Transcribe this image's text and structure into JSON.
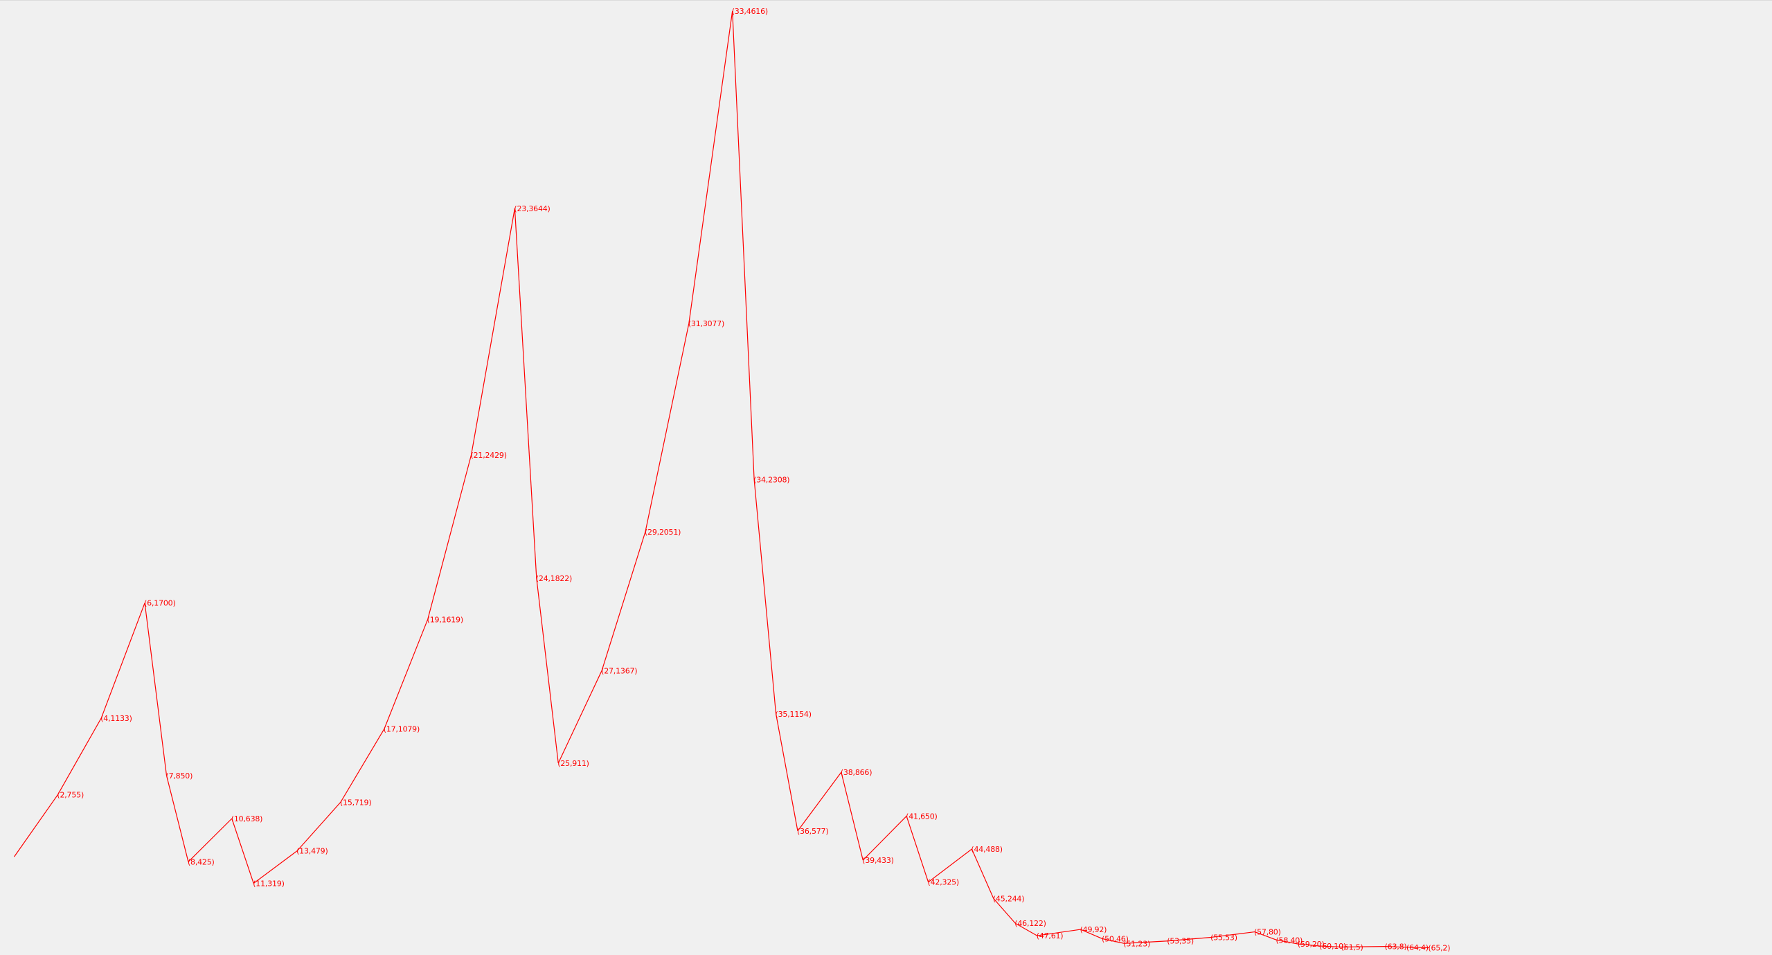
{
  "chart_data": {
    "type": "line",
    "title": "",
    "xlabel": "",
    "ylabel": "",
    "line_color": "#ff0000",
    "label_color": "#ff0000",
    "background": "#f0f0f0",
    "grid": false,
    "legend": "none",
    "xlim": [
      0,
      68
    ],
    "ylim": [
      0,
      4616
    ],
    "points": [
      {
        "x": 0,
        "y": 450,
        "label": ""
      },
      {
        "x": 2,
        "y": 755,
        "label": "(2,755)"
      },
      {
        "x": 4,
        "y": 1133,
        "label": "(4,1133)"
      },
      {
        "x": 6,
        "y": 1700,
        "label": "(6,1700)"
      },
      {
        "x": 7,
        "y": 850,
        "label": "(7,850)"
      },
      {
        "x": 8,
        "y": 425,
        "label": "(8,425)"
      },
      {
        "x": 10,
        "y": 638,
        "label": "(10,638)"
      },
      {
        "x": 11,
        "y": 319,
        "label": "(11,319)"
      },
      {
        "x": 13,
        "y": 479,
        "label": "(13,479)"
      },
      {
        "x": 15,
        "y": 719,
        "label": "(15,719)"
      },
      {
        "x": 17,
        "y": 1079,
        "label": "(17,1079)"
      },
      {
        "x": 19,
        "y": 1619,
        "label": "(19,1619)"
      },
      {
        "x": 21,
        "y": 2429,
        "label": "(21,2429)"
      },
      {
        "x": 23,
        "y": 3644,
        "label": "(23,3644)"
      },
      {
        "x": 24,
        "y": 1822,
        "label": "(24,1822)"
      },
      {
        "x": 25,
        "y": 911,
        "label": "(25,911)"
      },
      {
        "x": 27,
        "y": 1367,
        "label": "(27,1367)"
      },
      {
        "x": 29,
        "y": 2051,
        "label": "(29,2051)"
      },
      {
        "x": 31,
        "y": 3077,
        "label": "(31,3077)"
      },
      {
        "x": 33,
        "y": 4616,
        "label": "(33,4616)"
      },
      {
        "x": 34,
        "y": 2308,
        "label": "(34,2308)"
      },
      {
        "x": 35,
        "y": 1154,
        "label": "(35,1154)"
      },
      {
        "x": 36,
        "y": 577,
        "label": "(36,577)"
      },
      {
        "x": 38,
        "y": 866,
        "label": "(38,866)"
      },
      {
        "x": 39,
        "y": 433,
        "label": "(39,433)"
      },
      {
        "x": 41,
        "y": 650,
        "label": "(41,650)"
      },
      {
        "x": 42,
        "y": 325,
        "label": "(42,325)"
      },
      {
        "x": 44,
        "y": 488,
        "label": "(44,488)"
      },
      {
        "x": 45,
        "y": 244,
        "label": "(45,244)"
      },
      {
        "x": 46,
        "y": 122,
        "label": "(46,122)"
      },
      {
        "x": 47,
        "y": 61,
        "label": "(47,61)"
      },
      {
        "x": 49,
        "y": 92,
        "label": "(49,92)"
      },
      {
        "x": 50,
        "y": 46,
        "label": "(50,46)"
      },
      {
        "x": 51,
        "y": 23,
        "label": "(51,23)"
      },
      {
        "x": 53,
        "y": 35,
        "label": "(53,35)"
      },
      {
        "x": 55,
        "y": 53,
        "label": "(55,53)"
      },
      {
        "x": 57,
        "y": 80,
        "label": "(57,80)"
      },
      {
        "x": 58,
        "y": 40,
        "label": "(58,40)"
      },
      {
        "x": 59,
        "y": 20,
        "label": "(59,20)"
      },
      {
        "x": 60,
        "y": 10,
        "label": "(60,10)"
      },
      {
        "x": 61,
        "y": 5,
        "label": "(61,5)"
      },
      {
        "x": 63,
        "y": 8,
        "label": "(63,8)"
      },
      {
        "x": 64,
        "y": 4,
        "label": "(64,4)"
      },
      {
        "x": 65,
        "y": 2,
        "label": "(65,2)"
      }
    ]
  }
}
